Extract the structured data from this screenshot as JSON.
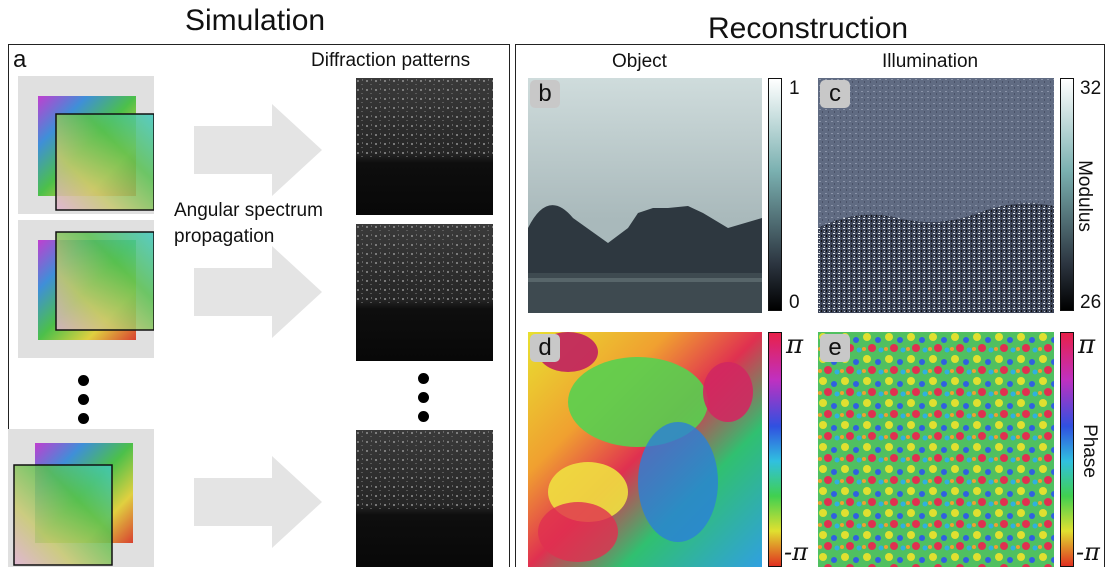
{
  "simulation": {
    "title": "Simulation",
    "panel_label": "a",
    "diffraction_heading": "Diffraction patterns",
    "propagation_label_line1": "Angular spectrum",
    "propagation_label_line2": "propagation"
  },
  "reconstruction": {
    "title": "Reconstruction",
    "object_heading": "Object",
    "illumination_heading": "Illumination",
    "panel_b": "b",
    "panel_c": "c",
    "panel_d": "d",
    "panel_e": "e",
    "object_modulus_colorbar": {
      "max": "1",
      "min": "0"
    },
    "illumination_modulus_colorbar": {
      "max": "32",
      "min": "26",
      "label": "Modulus"
    },
    "object_phase_colorbar": {
      "max": "π",
      "min": "-π"
    },
    "illumination_phase_colorbar": {
      "max": "π",
      "min": "-π",
      "label": "Phase"
    }
  },
  "colors": {
    "arrow": "#e4e4e4",
    "probe_bg": "#e0e0e0",
    "border": "#222222"
  }
}
